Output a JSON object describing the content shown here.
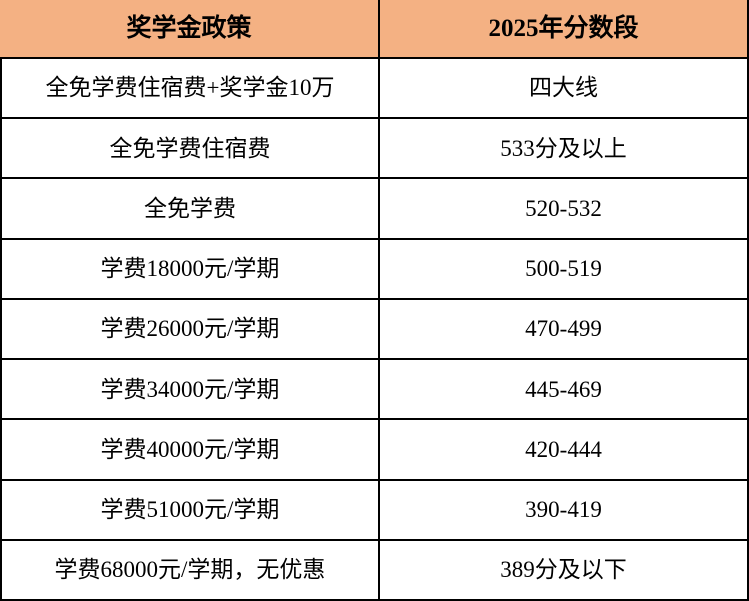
{
  "chart_data": {
    "type": "table",
    "title": "",
    "columns": [
      "奖学金政策",
      "2025年分数段"
    ],
    "rows": [
      [
        "全免学费住宿费+奖学金10万",
        "四大线"
      ],
      [
        "全免学费住宿费",
        "533分及以上"
      ],
      [
        "全免学费",
        "520-532"
      ],
      [
        "学费18000元/学期",
        "500-519"
      ],
      [
        "学费26000元/学期",
        "470-499"
      ],
      [
        "学费34000元/学期",
        "445-469"
      ],
      [
        "学费40000元/学期",
        "420-444"
      ],
      [
        "学费51000元/学期",
        "390-419"
      ],
      [
        "学费68000元/学期，无优惠",
        "389分及以下"
      ]
    ],
    "layout": {
      "header_bg": "#F4B183",
      "body_bg": "#FFFFFF",
      "border_color": "#000000",
      "text_color": "#000000",
      "grid": "on"
    }
  }
}
